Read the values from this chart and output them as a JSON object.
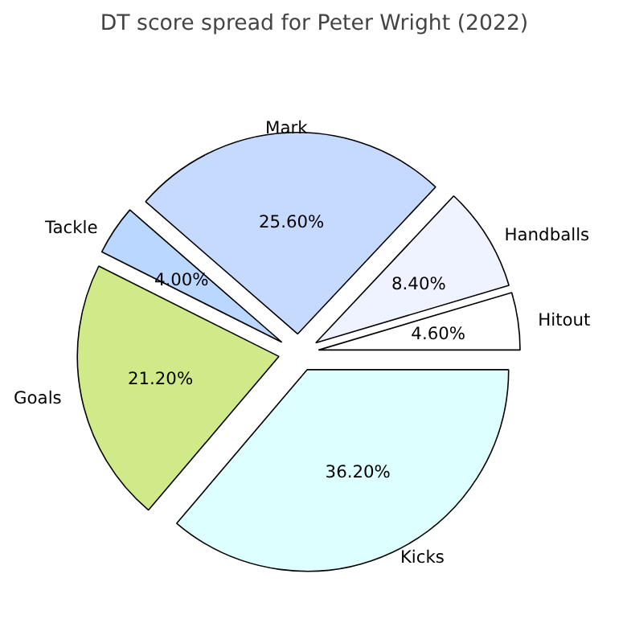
{
  "chart_data": {
    "type": "pie",
    "title": "DT score spread for Peter Wright (2022)",
    "categories": [
      "Hitout",
      "Handballs",
      "Mark",
      "Tackle",
      "Goals",
      "Kicks"
    ],
    "values": [
      4.6,
      8.4,
      25.6,
      4.0,
      21.2,
      36.2
    ],
    "value_labels": [
      "4.60%",
      "8.40%",
      "25.60%",
      "4.00%",
      "21.20%",
      "36.20%"
    ],
    "colors": [
      "#ffffff",
      "#eef3ff",
      "#c6d9ff",
      "#b9d7ff",
      "#d0ea8a",
      "#ddffff"
    ]
  }
}
